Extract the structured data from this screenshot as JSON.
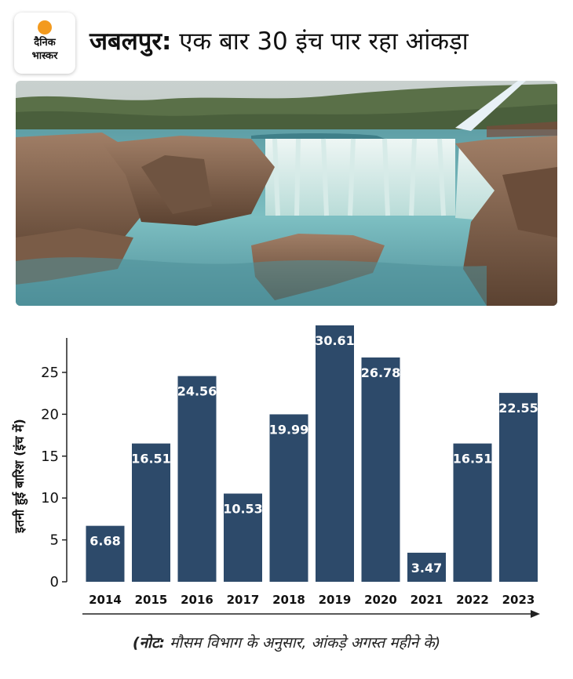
{
  "header": {
    "logo_line1": "दैनिक",
    "logo_line2": "भास्कर",
    "title_bold": "जबलपुर:",
    "title_rest": " एक बार 30 इंच पार रहा आंकड़ा"
  },
  "note": {
    "bold": "(नोट:",
    "rest": " मौसम विभाग के अनुसार, आंकड़े अगस्त महीने के)"
  },
  "colors": {
    "bar": "#2d4a6a",
    "axis": "#222222",
    "logo_accent": "#f39a1e"
  },
  "chart_data": {
    "type": "bar",
    "categories": [
      "2014",
      "2015",
      "2016",
      "2017",
      "2018",
      "2019",
      "2020",
      "2021",
      "2022",
      "2023"
    ],
    "values": [
      6.68,
      16.51,
      24.56,
      10.53,
      19.99,
      30.61,
      26.78,
      3.47,
      16.51,
      22.55
    ],
    "value_labels": [
      "6.68",
      "16.51",
      "24.56",
      "10.53",
      "19.99",
      "30.61",
      "26.78",
      "3.47",
      "16.51",
      "22.55"
    ],
    "ylabel": "इतनी हुई बारिश (इंच में)",
    "yticks": [
      "0",
      "5",
      "10",
      "15",
      "20",
      "25"
    ],
    "ylim": [
      0,
      30.61
    ],
    "grid": false,
    "legend": "none"
  }
}
